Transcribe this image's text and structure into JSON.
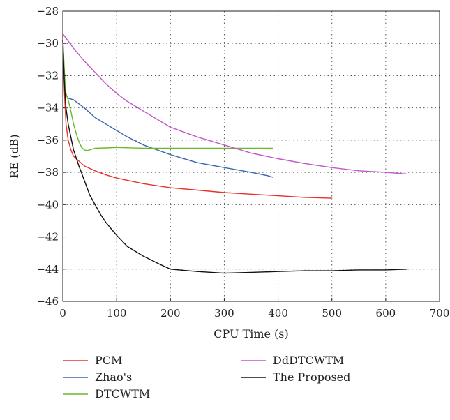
{
  "chart_data": {
    "type": "line",
    "title": "",
    "xlabel": "CPU Time (s)",
    "ylabel": "RE (dB)",
    "xlim": [
      0,
      700
    ],
    "ylim": [
      -46,
      -28
    ],
    "xticks": [
      0,
      100,
      200,
      300,
      400,
      500,
      600,
      700
    ],
    "yticks": [
      -28,
      -30,
      -32,
      -34,
      -36,
      -38,
      -40,
      -42,
      -44,
      -46
    ],
    "xtick_labels": [
      "0",
      "100",
      "200",
      "300",
      "400",
      "500",
      "600",
      "700"
    ],
    "ytick_labels": [
      "−28",
      "−30",
      "−32",
      "−34",
      "−36",
      "−38",
      "−40",
      "−42",
      "−44",
      "−46"
    ],
    "grid": true,
    "legend_position": "below",
    "series": [
      {
        "name": "PCM",
        "color": "#e8312a",
        "points": [
          [
            0,
            -29.5
          ],
          [
            3,
            -33.0
          ],
          [
            6,
            -35.0
          ],
          [
            10,
            -36.0
          ],
          [
            15,
            -36.6
          ],
          [
            20,
            -37.0
          ],
          [
            30,
            -37.3
          ],
          [
            40,
            -37.6
          ],
          [
            60,
            -37.9
          ],
          [
            80,
            -38.15
          ],
          [
            100,
            -38.35
          ],
          [
            150,
            -38.7
          ],
          [
            200,
            -38.95
          ],
          [
            250,
            -39.1
          ],
          [
            300,
            -39.25
          ],
          [
            350,
            -39.35
          ],
          [
            400,
            -39.45
          ],
          [
            450,
            -39.55
          ],
          [
            500,
            -39.6
          ]
        ]
      },
      {
        "name": "Zhao's",
        "color": "#3a66ad",
        "points": [
          [
            0,
            -29.8
          ],
          [
            3,
            -32.0
          ],
          [
            6,
            -33.2
          ],
          [
            10,
            -33.4
          ],
          [
            20,
            -33.5
          ],
          [
            40,
            -34.0
          ],
          [
            60,
            -34.6
          ],
          [
            80,
            -35.0
          ],
          [
            100,
            -35.4
          ],
          [
            120,
            -35.8
          ],
          [
            150,
            -36.3
          ],
          [
            200,
            -36.9
          ],
          [
            250,
            -37.4
          ],
          [
            300,
            -37.7
          ],
          [
            350,
            -38.0
          ],
          [
            380,
            -38.2
          ],
          [
            390,
            -38.3
          ]
        ]
      },
      {
        "name": "DTCWTM",
        "color": "#6ab82a",
        "points": [
          [
            0,
            -29.8
          ],
          [
            5,
            -33.0
          ],
          [
            10,
            -33.5
          ],
          [
            15,
            -34.2
          ],
          [
            20,
            -35.0
          ],
          [
            25,
            -35.6
          ],
          [
            30,
            -36.1
          ],
          [
            35,
            -36.45
          ],
          [
            40,
            -36.6
          ],
          [
            45,
            -36.65
          ],
          [
            50,
            -36.6
          ],
          [
            60,
            -36.5
          ],
          [
            80,
            -36.48
          ],
          [
            100,
            -36.45
          ],
          [
            150,
            -36.5
          ],
          [
            200,
            -36.5
          ],
          [
            250,
            -36.5
          ],
          [
            300,
            -36.5
          ],
          [
            350,
            -36.5
          ],
          [
            390,
            -36.5
          ]
        ]
      },
      {
        "name": "DdDTCWTM",
        "color": "#c157c9",
        "points": [
          [
            0,
            -29.4
          ],
          [
            20,
            -30.3
          ],
          [
            40,
            -31.1
          ],
          [
            60,
            -31.8
          ],
          [
            80,
            -32.5
          ],
          [
            100,
            -33.1
          ],
          [
            120,
            -33.6
          ],
          [
            150,
            -34.2
          ],
          [
            200,
            -35.2
          ],
          [
            250,
            -35.8
          ],
          [
            300,
            -36.3
          ],
          [
            350,
            -36.8
          ],
          [
            400,
            -37.15
          ],
          [
            450,
            -37.45
          ],
          [
            500,
            -37.7
          ],
          [
            550,
            -37.9
          ],
          [
            600,
            -38.0
          ],
          [
            640,
            -38.1
          ]
        ]
      },
      {
        "name": "The Proposed",
        "color": "#111111",
        "points": [
          [
            0,
            -29.8
          ],
          [
            3,
            -32.5
          ],
          [
            6,
            -34.0
          ],
          [
            10,
            -35.0
          ],
          [
            20,
            -36.6
          ],
          [
            30,
            -37.6
          ],
          [
            40,
            -38.5
          ],
          [
            50,
            -39.4
          ],
          [
            60,
            -40.0
          ],
          [
            70,
            -40.6
          ],
          [
            80,
            -41.1
          ],
          [
            100,
            -41.9
          ],
          [
            120,
            -42.6
          ],
          [
            150,
            -43.2
          ],
          [
            180,
            -43.7
          ],
          [
            200,
            -44.0
          ],
          [
            250,
            -44.15
          ],
          [
            300,
            -44.25
          ],
          [
            350,
            -44.2
          ],
          [
            400,
            -44.15
          ],
          [
            450,
            -44.1
          ],
          [
            500,
            -44.1
          ],
          [
            550,
            -44.05
          ],
          [
            600,
            -44.05
          ],
          [
            640,
            -44.0
          ]
        ]
      }
    ]
  }
}
